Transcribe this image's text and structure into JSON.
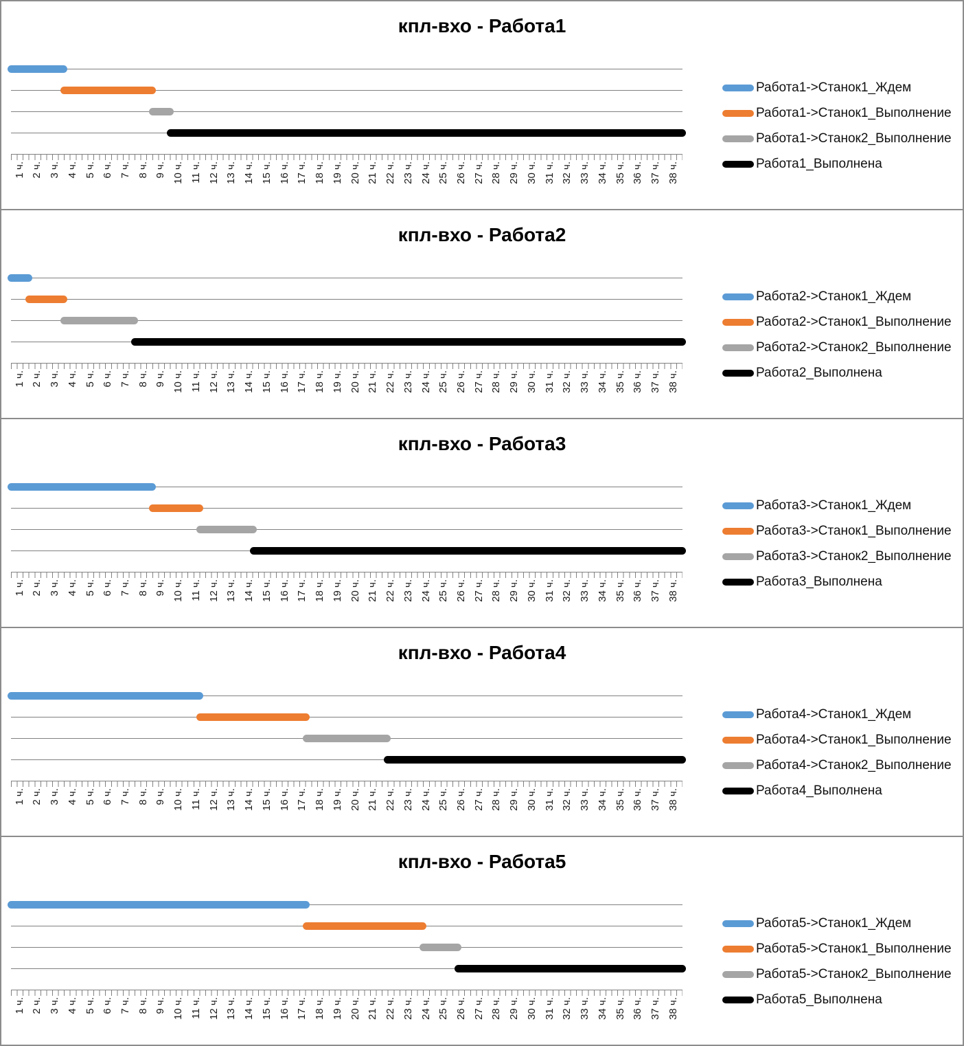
{
  "page": {
    "background": "#FFFFFF",
    "border_color": "#8C8C8C"
  },
  "chart_data": {
    "type": "gantt",
    "legend_position": "right",
    "grid": true,
    "x_axis": {
      "min": 0,
      "max": 38,
      "unit": "ч.",
      "minor_ticks_per_hour": 3,
      "axis_color": "#808080",
      "gridline_color": "#808080",
      "labels": [
        "1 ч.",
        "2 ч.",
        "3 ч.",
        "4 ч.",
        "5 ч.",
        "6 ч.",
        "7 ч.",
        "8 ч.",
        "9 ч.",
        "10 ч.",
        "11 ч.",
        "12 ч.",
        "13 ч.",
        "14 ч.",
        "15 ч.",
        "16 ч.",
        "17 ч.",
        "18 ч.",
        "19 ч.",
        "20 ч.",
        "21 ч.",
        "22 ч.",
        "23 ч.",
        "24 ч.",
        "25 ч.",
        "26 ч.",
        "27 ч.",
        "28 ч.",
        "29 ч.",
        "30 ч.",
        "31 ч.",
        "32 ч.",
        "33 ч.",
        "34 ч.",
        "35 ч.",
        "36 ч.",
        "37 ч.",
        "38 ч."
      ]
    },
    "panels": [
      {
        "title": "кпл-вхо - Работа1",
        "series": [
          {
            "name": "Работа1->Станок1_Ждем",
            "color": "#5B9BD5",
            "start": 0,
            "end": 3
          },
          {
            "name": "Работа1->Станок1_Выполнение",
            "color": "#ED7D31",
            "start": 3,
            "end": 8
          },
          {
            "name": "Работа1->Станок2_Выполнение",
            "color": "#A5A5A5",
            "start": 8,
            "end": 9
          },
          {
            "name": "Работа1_Выполнена",
            "color": "#000000",
            "start": 9,
            "end": 38
          }
        ]
      },
      {
        "title": "кпл-вхо - Работа2",
        "series": [
          {
            "name": "Работа2->Станок1_Ждем",
            "color": "#5B9BD5",
            "start": 0,
            "end": 1
          },
          {
            "name": "Работа2->Станок1_Выполнение",
            "color": "#ED7D31",
            "start": 1,
            "end": 3
          },
          {
            "name": "Работа2->Станок2_Выполнение",
            "color": "#A5A5A5",
            "start": 3,
            "end": 7
          },
          {
            "name": "Работа2_Выполнена",
            "color": "#000000",
            "start": 7,
            "end": 38
          }
        ]
      },
      {
        "title": "кпл-вхо - Работа3",
        "series": [
          {
            "name": "Работа3->Станок1_Ждем",
            "color": "#5B9BD5",
            "start": 0,
            "end": 8
          },
          {
            "name": "Работа3->Станок1_Выполнение",
            "color": "#ED7D31",
            "start": 8,
            "end": 10.7
          },
          {
            "name": "Работа3->Станок2_Выполнение",
            "color": "#A5A5A5",
            "start": 10.7,
            "end": 13.7
          },
          {
            "name": "Работа3_Выполнена",
            "color": "#000000",
            "start": 13.7,
            "end": 38
          }
        ]
      },
      {
        "title": "кпл-вхо - Работа4",
        "series": [
          {
            "name": "Работа4->Станок1_Ждем",
            "color": "#5B9BD5",
            "start": 0,
            "end": 10.7
          },
          {
            "name": "Работа4->Станок1_Выполнение",
            "color": "#ED7D31",
            "start": 10.7,
            "end": 16.7
          },
          {
            "name": "Работа4->Станок2_Выполнение",
            "color": "#A5A5A5",
            "start": 16.7,
            "end": 21.3
          },
          {
            "name": "Работа4_Выполнена",
            "color": "#000000",
            "start": 21.3,
            "end": 38
          }
        ]
      },
      {
        "title": "кпл-вхо - Работа5",
        "series": [
          {
            "name": "Работа5->Станок1_Ждем",
            "color": "#5B9BD5",
            "start": 0,
            "end": 16.7
          },
          {
            "name": "Работа5->Станок1_Выполнение",
            "color": "#ED7D31",
            "start": 16.7,
            "end": 23.3
          },
          {
            "name": "Работа5->Станок2_Выполнение",
            "color": "#A5A5A5",
            "start": 23.3,
            "end": 25.3
          },
          {
            "name": "Работа5_Выполнена",
            "color": "#000000",
            "start": 25.3,
            "end": 38
          }
        ]
      }
    ]
  }
}
